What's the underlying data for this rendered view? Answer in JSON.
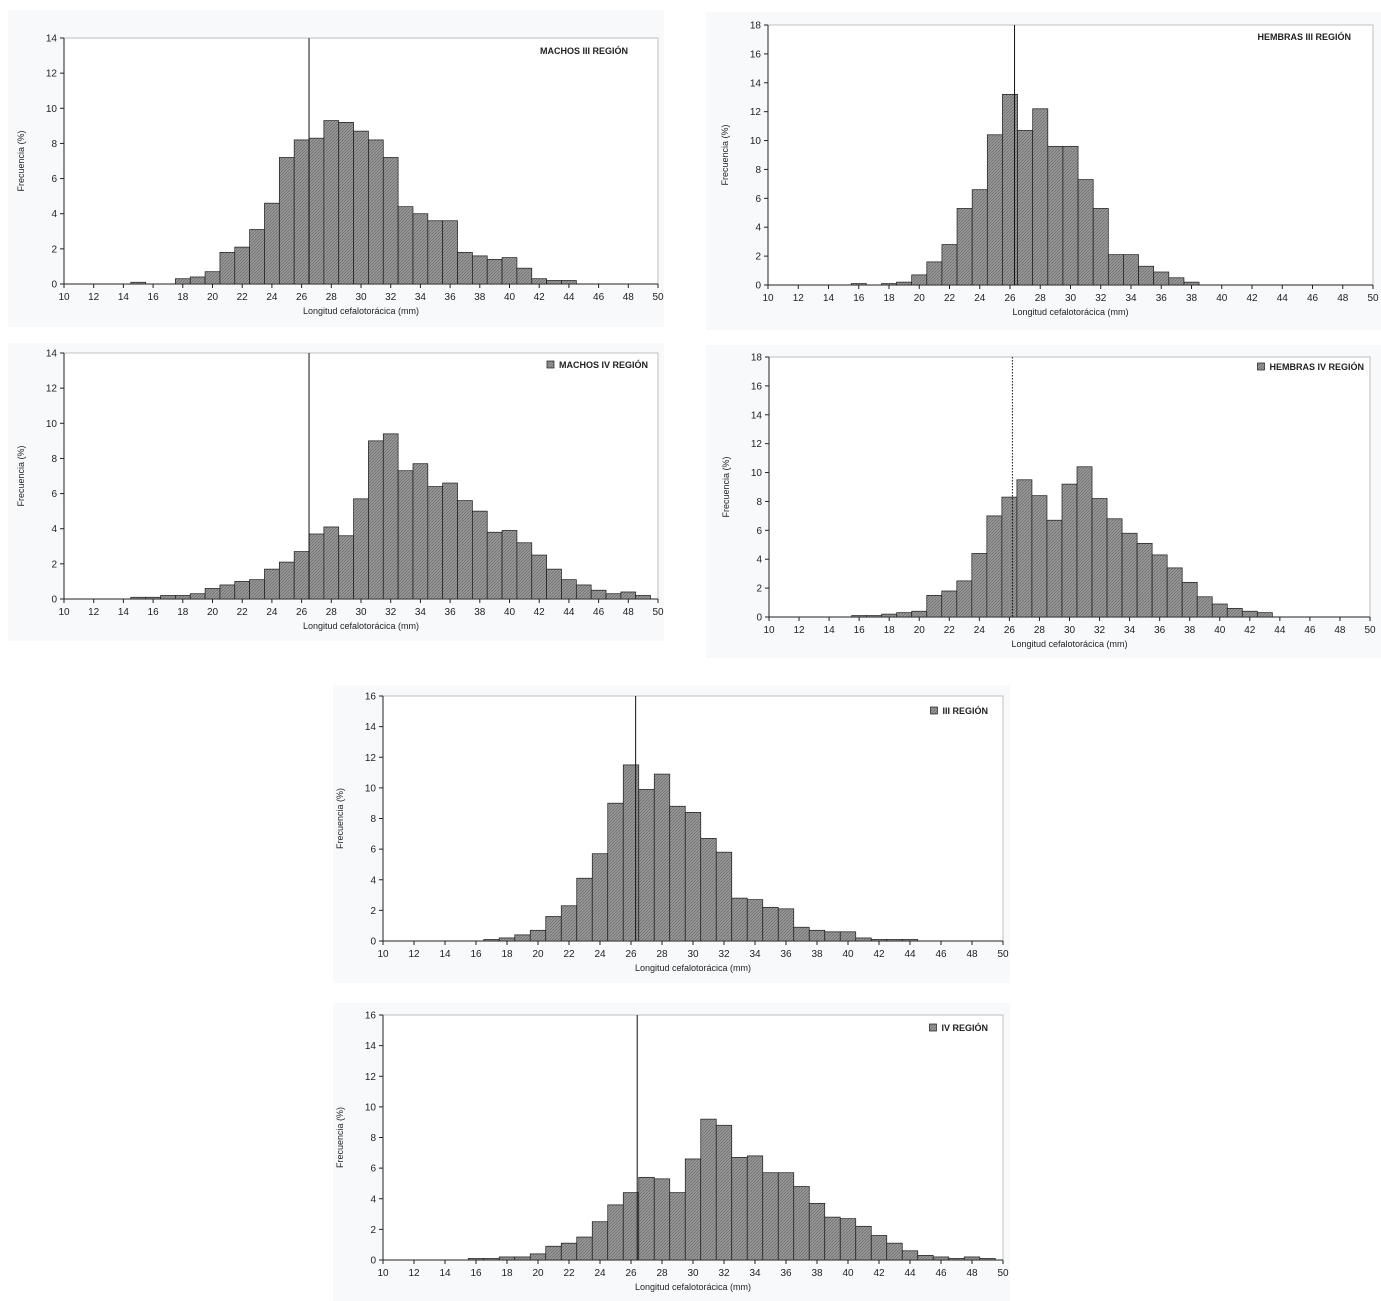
{
  "chart_data": [
    {
      "type": "bar",
      "legend": "MACHOS III REGIÓN",
      "xlabel": "Longitud cefalotorácica (mm)",
      "ylabel": "Frecuencia (%)",
      "xlim": [
        10,
        50
      ],
      "xticks": [
        10,
        12,
        14,
        16,
        18,
        20,
        22,
        24,
        26,
        28,
        30,
        32,
        34,
        36,
        38,
        40,
        42,
        44,
        46,
        48,
        50
      ],
      "ylim": [
        0,
        14
      ],
      "yticks": [
        0,
        2,
        4,
        6,
        8,
        10,
        12,
        14
      ],
      "reference_line_x": 26.5,
      "reference_line_style": "solid",
      "x": [
        15,
        18,
        19,
        20,
        21,
        22,
        23,
        24,
        25,
        26,
        27,
        28,
        29,
        30,
        31,
        32,
        33,
        34,
        35,
        36,
        37,
        38,
        39,
        40,
        41,
        42,
        43,
        44
      ],
      "values": [
        0.1,
        0.3,
        0.4,
        0.7,
        1.8,
        2.1,
        3.1,
        4.6,
        7.2,
        8.2,
        8.3,
        9.3,
        9.2,
        8.7,
        8.2,
        7.2,
        4.4,
        4.0,
        3.6,
        3.6,
        1.8,
        1.6,
        1.4,
        1.5,
        0.9,
        0.3,
        0.2,
        0.2
      ]
    },
    {
      "type": "bar",
      "legend": "HEMBRAS III REGIÓN",
      "xlabel": "Longitud cefalotorácica (mm)",
      "ylabel": "Frecuencia (%)",
      "xlim": [
        10,
        50
      ],
      "xticks": [
        10,
        12,
        14,
        16,
        18,
        20,
        22,
        24,
        26,
        28,
        30,
        32,
        34,
        36,
        38,
        40,
        42,
        44,
        46,
        48,
        50
      ],
      "ylim": [
        0,
        18
      ],
      "yticks": [
        0,
        2,
        4,
        6,
        8,
        10,
        12,
        14,
        16,
        18
      ],
      "reference_line_x": 26.3,
      "reference_line_style": "solid",
      "x": [
        16,
        18,
        19,
        20,
        21,
        22,
        23,
        24,
        25,
        26,
        27,
        28,
        29,
        30,
        31,
        32,
        33,
        34,
        35,
        36,
        37,
        38
      ],
      "values": [
        0.1,
        0.1,
        0.2,
        0.7,
        1.6,
        2.8,
        5.3,
        6.6,
        10.4,
        13.2,
        10.7,
        12.2,
        9.6,
        9.6,
        7.3,
        5.3,
        2.1,
        2.1,
        1.3,
        0.9,
        0.5,
        0.2
      ]
    },
    {
      "type": "bar",
      "legend": "MACHOS IV REGIÓN",
      "xlabel": "Longitud cefalotorácica (mm)",
      "ylabel": "Frecuencia (%)",
      "xlim": [
        10,
        50
      ],
      "xticks": [
        10,
        12,
        14,
        16,
        18,
        20,
        22,
        24,
        26,
        28,
        30,
        32,
        34,
        36,
        38,
        40,
        42,
        44,
        46,
        48,
        50
      ],
      "ylim": [
        0,
        14
      ],
      "yticks": [
        0,
        2,
        4,
        6,
        8,
        10,
        12,
        14
      ],
      "reference_line_x": 26.5,
      "reference_line_style": "solid",
      "x": [
        15,
        16,
        17,
        18,
        19,
        20,
        21,
        22,
        23,
        24,
        25,
        26,
        27,
        28,
        29,
        30,
        31,
        32,
        33,
        34,
        35,
        36,
        37,
        38,
        39,
        40,
        41,
        42,
        43,
        44,
        45,
        46,
        47,
        48,
        49
      ],
      "values": [
        0.1,
        0.1,
        0.2,
        0.2,
        0.3,
        0.6,
        0.8,
        1.0,
        1.1,
        1.7,
        2.1,
        2.7,
        3.7,
        4.1,
        3.6,
        5.7,
        9.0,
        9.4,
        7.3,
        7.7,
        6.4,
        6.6,
        5.6,
        5.0,
        3.8,
        3.9,
        3.2,
        2.5,
        1.7,
        1.1,
        0.8,
        0.5,
        0.3,
        0.4,
        0.2
      ]
    },
    {
      "type": "bar",
      "legend": "HEMBRAS IV REGIÓN",
      "xlabel": "Longitud cefalotorácica (mm)",
      "ylabel": "Frecuencia (%)",
      "xlim": [
        10,
        50
      ],
      "xticks": [
        10,
        12,
        14,
        16,
        18,
        20,
        22,
        24,
        26,
        28,
        30,
        32,
        34,
        36,
        38,
        40,
        42,
        44,
        46,
        48,
        50
      ],
      "ylim": [
        0,
        18
      ],
      "yticks": [
        0,
        2,
        4,
        6,
        8,
        10,
        12,
        14,
        16,
        18
      ],
      "reference_line_x": 26.2,
      "reference_line_style": "dotted",
      "x": [
        16,
        17,
        18,
        19,
        20,
        21,
        22,
        23,
        24,
        25,
        26,
        27,
        28,
        29,
        30,
        31,
        32,
        33,
        34,
        35,
        36,
        37,
        38,
        39,
        40,
        41,
        42,
        43
      ],
      "values": [
        0.1,
        0.1,
        0.2,
        0.3,
        0.4,
        1.5,
        1.8,
        2.5,
        4.4,
        7.0,
        8.3,
        9.5,
        8.4,
        6.7,
        9.2,
        10.4,
        8.2,
        6.8,
        5.8,
        5.1,
        4.3,
        3.4,
        2.4,
        1.4,
        0.9,
        0.6,
        0.4,
        0.3
      ]
    },
    {
      "type": "bar",
      "legend": "III REGIÓN",
      "xlabel": "Longitud cefalotorácica (mm)",
      "ylabel": "Frecuencia (%)",
      "xlim": [
        10,
        50
      ],
      "xticks": [
        10,
        12,
        14,
        16,
        18,
        20,
        22,
        24,
        26,
        28,
        30,
        32,
        34,
        36,
        38,
        40,
        42,
        44,
        46,
        48,
        50
      ],
      "ylim": [
        0,
        16
      ],
      "yticks": [
        0,
        2,
        4,
        6,
        8,
        10,
        12,
        14,
        16
      ],
      "reference_line_x": 26.3,
      "reference_line_style": "solid",
      "x": [
        17,
        18,
        19,
        20,
        21,
        22,
        23,
        24,
        25,
        26,
        27,
        28,
        29,
        30,
        31,
        32,
        33,
        34,
        35,
        36,
        37,
        38,
        39,
        40,
        41,
        42,
        43,
        44
      ],
      "values": [
        0.1,
        0.2,
        0.4,
        0.7,
        1.6,
        2.3,
        4.1,
        5.7,
        9.0,
        11.5,
        9.9,
        10.9,
        8.8,
        8.4,
        6.7,
        5.8,
        2.8,
        2.7,
        2.2,
        2.1,
        0.9,
        0.7,
        0.6,
        0.6,
        0.2,
        0.1,
        0.1,
        0.1
      ]
    },
    {
      "type": "bar",
      "legend": "IV REGIÓN",
      "xlabel": "Longitud cefalotorácica (mm)",
      "ylabel": "Frecuencia (%)",
      "xlim": [
        10,
        50
      ],
      "xticks": [
        10,
        12,
        14,
        16,
        18,
        20,
        22,
        24,
        26,
        28,
        30,
        32,
        34,
        36,
        38,
        40,
        42,
        44,
        46,
        48,
        50
      ],
      "ylim": [
        0,
        16
      ],
      "yticks": [
        0,
        2,
        4,
        6,
        8,
        10,
        12,
        14,
        16
      ],
      "reference_line_x": 26.4,
      "reference_line_style": "solid",
      "x": [
        16,
        17,
        18,
        19,
        20,
        21,
        22,
        23,
        24,
        25,
        26,
        27,
        28,
        29,
        30,
        31,
        32,
        33,
        34,
        35,
        36,
        37,
        38,
        39,
        40,
        41,
        42,
        43,
        44,
        45,
        46,
        47,
        48,
        49
      ],
      "values": [
        0.1,
        0.1,
        0.2,
        0.2,
        0.4,
        0.9,
        1.1,
        1.5,
        2.5,
        3.6,
        4.4,
        5.4,
        5.3,
        4.4,
        6.6,
        9.2,
        8.8,
        6.7,
        6.8,
        5.7,
        5.7,
        4.8,
        3.7,
        2.8,
        2.7,
        2.2,
        1.6,
        1.1,
        0.6,
        0.3,
        0.2,
        0.1,
        0.2,
        0.1
      ]
    }
  ],
  "colors": {
    "bar_fill": "#9a9a9a",
    "bar_stroke": "#1a1a1a",
    "panel_bg": "#f7f9fb",
    "axis": "#222222"
  }
}
